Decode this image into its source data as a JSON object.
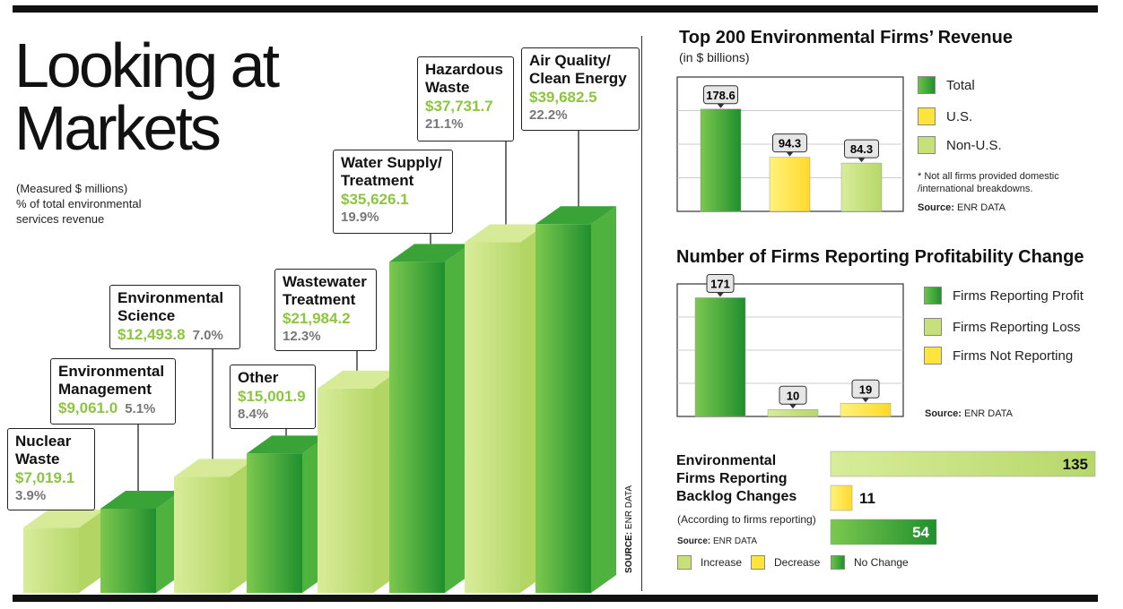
{
  "main": {
    "title_line1": "Looking at",
    "title_line2": "Markets",
    "subtitle_line1": "(Measured $ millions)",
    "subtitle_line2": "% of total environmental",
    "subtitle_line3": "services revenue",
    "source": "SOURCE:",
    "source_org": "ENR DATA"
  },
  "colors": {
    "dark_green": "#2e9e3a",
    "light_green": "#c6e07a",
    "yellow": "#ffe53b",
    "amount_green": "#8cc63f"
  },
  "chart_data": [
    {
      "type": "bar",
      "title": "Looking at Markets",
      "subtitle": "(Measured $ millions) % of total environmental services revenue",
      "categories": [
        "Nuclear Waste",
        "Environmental Management",
        "Environmental Science",
        "Other",
        "Wastewater Treatment",
        "Water Supply/ Treatment",
        "Hazardous Waste",
        "Air Quality/ Clean Energy"
      ],
      "values": [
        7019.1,
        9061.0,
        12493.8,
        15001.9,
        21984.2,
        35626.1,
        37731.7,
        39682.5
      ],
      "value_labels": [
        "$7,019.1",
        "$9,061.0",
        "$12,493.8",
        "$15,001.9",
        "$21,984.2",
        "$35,626.1",
        "$37,731.7",
        "$39,682.5"
      ],
      "percents": [
        "3.9%",
        "5.1%",
        "7.0%",
        "8.4%",
        "12.3%",
        "19.9%",
        "21.1%",
        "22.2%"
      ],
      "bar_shades": [
        "light",
        "dark",
        "light",
        "dark",
        "light",
        "dark",
        "light",
        "dark"
      ]
    },
    {
      "type": "bar",
      "title": "Top 200 Environmental Firms’ Revenue",
      "subtitle": "(in $ billions)",
      "categories": [
        "Total",
        "U.S.",
        "Non-U.S."
      ],
      "values": [
        178.6,
        94.3,
        84.3
      ],
      "value_labels": [
        "178.6",
        "94.3",
        "84.3"
      ],
      "legend": [
        "Total",
        "U.S.",
        "Non-U.S."
      ],
      "note_line1": "* Not all firms provided domestic",
      "note_line2": "/international breakdowns.",
      "source_label": "Source:",
      "source_org": "ENR DATA"
    },
    {
      "type": "bar",
      "title": "Number of Firms Reporting Profitability Change",
      "categories": [
        "Firms Reporting Profit",
        "Firms Reporting Loss",
        "Firms Not Reporting"
      ],
      "values": [
        171,
        10,
        19
      ],
      "value_labels": [
        "171",
        "10",
        "19"
      ],
      "legend": [
        "Firms Reporting Profit",
        "Firms Reporting Loss",
        "Firms Not Reporting"
      ],
      "source_label": "Source:",
      "source_org": "ENR DATA"
    },
    {
      "type": "bar",
      "title_line1": "Environmental",
      "title_line2": "Firms Reporting",
      "title_line3": "Backlog Changes",
      "subtitle": "(According to firms reporting)",
      "categories": [
        "Increase",
        "Decrease",
        "No Change"
      ],
      "values": [
        135,
        11,
        54
      ],
      "value_labels": [
        "135",
        "11",
        "54"
      ],
      "legend": [
        "Increase",
        "Decrease",
        "No Change"
      ],
      "source_label": "Source:",
      "source_org": "ENR DATA"
    }
  ]
}
